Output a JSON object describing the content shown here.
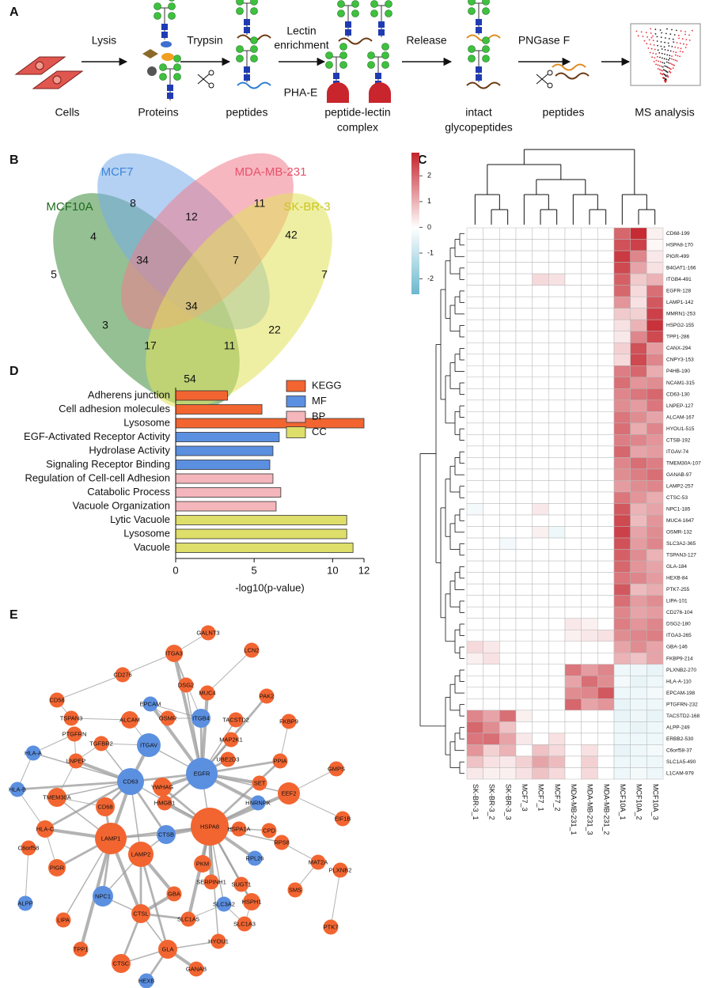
{
  "panels": [
    "A",
    "B",
    "C",
    "D",
    "E"
  ],
  "workflow": {
    "steps": [
      [
        "Cells"
      ],
      [
        "Proteins"
      ],
      [
        "peptides"
      ],
      [
        "peptide-lectin",
        "complex"
      ],
      [
        "intact",
        "glycopeptides"
      ],
      [
        "peptides"
      ],
      [
        "MS analysis"
      ]
    ],
    "arrows": [
      [
        "Lysis"
      ],
      [
        "Trypsin"
      ],
      [
        "Lectin",
        "enrichment"
      ],
      [
        "Release"
      ],
      [
        "PNGase F"
      ]
    ],
    "lectin": "PHA-E"
  },
  "venn": {
    "sets": [
      {
        "name": "MCF10A",
        "color": "#1e6b1e"
      },
      {
        "name": "MCF7",
        "color": "#3d85d8"
      },
      {
        "name": "MDA-MB-231",
        "color": "#e8506a"
      },
      {
        "name": "SK-BR-3",
        "color": "#c9c51f"
      }
    ],
    "counts": [
      8,
      11,
      12,
      4,
      42,
      34,
      7,
      5,
      7,
      34,
      3,
      22,
      17,
      11,
      54
    ]
  },
  "chart_data": {
    "type": "bar",
    "orientation": "horizontal",
    "xlabel": "-log10(p-value)",
    "xlim": [
      0,
      12
    ],
    "xticks": [
      0,
      5,
      10,
      12
    ],
    "series": [
      {
        "name": "KEGG",
        "color": "#f26531",
        "categories": [
          "Adherens junction",
          "Cell adhesion molecules",
          "Lysosome"
        ],
        "values": [
          3.3,
          5.5,
          12.0
        ]
      },
      {
        "name": "MF",
        "color": "#5b8fe0",
        "categories": [
          "EGF-Activated Receptor Activity",
          "Hydrolase Activity",
          "Signaling Receptor Binding"
        ],
        "values": [
          6.6,
          6.2,
          6.0
        ]
      },
      {
        "name": "BP",
        "color": "#f4b6bb",
        "categories": [
          "Regulation of Cell-cell Adhesion",
          "Catabolic Process",
          "Vacuole Organization"
        ],
        "values": [
          6.2,
          6.7,
          6.4
        ]
      },
      {
        "name": "CC",
        "color": "#dede6a",
        "categories": [
          "Lytic Vacuole",
          "Lysosome",
          "Vacuole"
        ],
        "values": [
          10.9,
          10.9,
          11.3
        ]
      }
    ]
  },
  "heatmap": {
    "vlim": [
      -2.6,
      2.9
    ],
    "colorbar_ticks": [
      2,
      1,
      0,
      -1,
      -2
    ],
    "columns": [
      "SK-BR-3_1",
      "SK-BR-3_2",
      "SK-BR-3_3",
      "MCF7_3",
      "MCF7_1",
      "MCF7_2",
      "MDA-MB-231_1",
      "MDA-MB-231_3",
      "MDA-MB-231_2",
      "MCF10A_1",
      "MCF10A_2",
      "MCF10A_3"
    ],
    "rows": [
      {
        "label": "CD68-199",
        "values": [
          0,
          0,
          0,
          0,
          0,
          0,
          0,
          0,
          0,
          2.0,
          2.8,
          0.2
        ]
      },
      {
        "label": "HSPA8-170",
        "values": [
          0,
          0,
          0,
          0,
          0,
          0,
          0,
          0,
          0,
          2.3,
          2.5,
          0.1
        ]
      },
      {
        "label": "PIGR-499",
        "values": [
          0,
          0,
          0,
          0,
          0,
          0,
          0,
          0,
          0,
          2.6,
          1.6,
          0.3
        ]
      },
      {
        "label": "B4GAT1-166",
        "values": [
          0,
          0,
          0,
          0,
          0,
          0,
          0,
          0,
          0,
          2.4,
          1.2,
          0.4
        ]
      },
      {
        "label": "ITGB4-491",
        "values": [
          0,
          0,
          0,
          0,
          0.5,
          0.4,
          0,
          0,
          0,
          2.1,
          0.7,
          1.0
        ]
      },
      {
        "label": "EGFR-128",
        "values": [
          0,
          0,
          0,
          0,
          0,
          0,
          0,
          0,
          0,
          2.0,
          0.5,
          1.9
        ]
      },
      {
        "label": "LAMP1-142",
        "values": [
          0,
          0,
          0,
          0,
          0,
          0,
          0,
          0,
          0,
          1.4,
          0.4,
          2.2
        ]
      },
      {
        "label": "MMRN1-253",
        "values": [
          0,
          0,
          0,
          0,
          0,
          0,
          0,
          0,
          0,
          0.7,
          0.6,
          2.5
        ]
      },
      {
        "label": "HSPG2-155",
        "values": [
          0,
          0,
          0,
          0,
          0,
          0,
          0,
          0,
          0,
          0.4,
          1.0,
          2.7
        ]
      },
      {
        "label": "TPP1-286",
        "values": [
          0,
          0,
          0,
          0,
          0,
          0,
          0,
          0,
          0,
          0.3,
          1.6,
          2.4
        ]
      },
      {
        "label": "CANX-294",
        "values": [
          0,
          0,
          0,
          0,
          0,
          0,
          0,
          0,
          0,
          0.6,
          2.3,
          1.3
        ]
      },
      {
        "label": "CNPY3-153",
        "values": [
          0,
          0,
          0,
          0,
          0,
          0,
          0,
          0,
          0,
          0.5,
          2.4,
          1.6
        ]
      },
      {
        "label": "P4HB-190",
        "values": [
          0,
          0,
          0,
          0,
          0,
          0,
          0,
          0,
          0,
          1.7,
          2.0,
          1.1
        ]
      },
      {
        "label": "NCAM1-315",
        "values": [
          0,
          0,
          0,
          0,
          0,
          0,
          0,
          0,
          0,
          1.9,
          1.4,
          1.5
        ]
      },
      {
        "label": "CD63-130",
        "values": [
          0,
          0,
          0,
          0,
          0,
          0,
          0,
          0,
          0,
          1.6,
          1.8,
          2.0
        ]
      },
      {
        "label": "LNPEP-127",
        "values": [
          0,
          0,
          0,
          0,
          0,
          0,
          0,
          0,
          0,
          1.5,
          1.3,
          1.8
        ]
      },
      {
        "label": "ALCAM-167",
        "values": [
          0,
          0,
          0,
          0,
          0,
          0,
          0,
          0,
          0,
          1.8,
          1.5,
          1.2
        ]
      },
      {
        "label": "HYOU1-515",
        "values": [
          0,
          0,
          0,
          0,
          0,
          0,
          0,
          0,
          0,
          1.9,
          1.1,
          1.6
        ]
      },
      {
        "label": "CTSB-192",
        "values": [
          0,
          0,
          0,
          0,
          0,
          0,
          0,
          0,
          0,
          1.7,
          1.6,
          1.4
        ]
      },
      {
        "label": "ITGAV-74",
        "values": [
          0,
          0,
          0,
          0,
          0,
          0,
          0,
          0,
          0,
          2.0,
          1.2,
          1.3
        ]
      },
      {
        "label": "TMEM30A-107",
        "values": [
          0,
          0,
          0,
          0,
          0,
          0,
          0,
          0,
          0,
          1.6,
          1.9,
          1.7
        ]
      },
      {
        "label": "GANAB-97",
        "values": [
          0,
          0,
          0,
          0,
          0,
          0,
          0,
          0,
          0,
          1.5,
          1.7,
          1.9
        ]
      },
      {
        "label": "LAMP2-257",
        "values": [
          0,
          0,
          0,
          0,
          0,
          0,
          0,
          0,
          0,
          1.3,
          1.5,
          1.6
        ]
      },
      {
        "label": "CTSC-53",
        "values": [
          0,
          0,
          0,
          0,
          0,
          0,
          0,
          0,
          0,
          1.8,
          1.4,
          1.1
        ]
      },
      {
        "label": "NPC1-185",
        "values": [
          -0.2,
          0,
          0,
          0,
          0.3,
          0,
          0,
          0,
          0,
          2.2,
          1.0,
          1.2
        ]
      },
      {
        "label": "MUC4-1647",
        "values": [
          0,
          0,
          0,
          0,
          0,
          0,
          0,
          0,
          0,
          2.4,
          0.9,
          1.4
        ]
      },
      {
        "label": "OSMR-132",
        "values": [
          0,
          0,
          0,
          0,
          0.2,
          -0.3,
          0,
          0,
          0,
          2.5,
          1.2,
          1.5
        ]
      },
      {
        "label": "SLC3A2-365",
        "values": [
          0,
          0,
          -0.2,
          0,
          0,
          0,
          0,
          0,
          0,
          2.3,
          1.3,
          1.6
        ]
      },
      {
        "label": "TSPAN3-127",
        "values": [
          0,
          0,
          0,
          0,
          0,
          0,
          0,
          0,
          0,
          2.1,
          1.5,
          1.0
        ]
      },
      {
        "label": "GLA-184",
        "values": [
          0,
          0,
          0,
          0,
          0,
          0,
          0,
          0,
          0,
          2.0,
          1.4,
          1.2
        ]
      },
      {
        "label": "HEXB-84",
        "values": [
          0,
          0,
          0,
          0,
          0,
          0,
          0,
          0,
          0,
          1.8,
          1.6,
          1.3
        ]
      },
      {
        "label": "PTK7-255",
        "values": [
          0,
          0,
          0,
          0,
          0,
          0,
          0,
          0,
          0,
          2.2,
          0.9,
          1.1
        ]
      },
      {
        "label": "LIPA-101",
        "values": [
          0,
          0,
          0,
          0,
          0,
          0,
          0,
          0,
          0,
          1.9,
          1.3,
          1.5
        ]
      },
      {
        "label": "CD276-104",
        "values": [
          0,
          0,
          0,
          0,
          0,
          0,
          0,
          0,
          0,
          1.6,
          1.2,
          1.3
        ]
      },
      {
        "label": "DSG2-180",
        "values": [
          0,
          0,
          0,
          0,
          0,
          0,
          0.3,
          0.2,
          0,
          1.7,
          1.4,
          1.6
        ]
      },
      {
        "label": "ITGA3-265",
        "values": [
          0,
          0,
          0,
          0,
          0,
          0,
          0.2,
          0.3,
          0.4,
          1.5,
          1.6,
          1.7
        ]
      },
      {
        "label": "GBA-146",
        "values": [
          0.5,
          0.3,
          0,
          0,
          0,
          0,
          0,
          0,
          0,
          1.2,
          1.5,
          1.2
        ]
      },
      {
        "label": "FKBP9-214",
        "values": [
          0.2,
          0.4,
          0,
          0,
          0,
          0,
          0,
          0,
          0,
          1.0,
          0.8,
          1.2
        ]
      },
      {
        "label": "PLXNB2-270",
        "values": [
          0,
          0,
          0,
          0,
          0,
          0,
          1.8,
          1.3,
          1.6,
          -0.3,
          -0.3,
          -0.4
        ]
      },
      {
        "label": "HLA-A-110",
        "values": [
          0,
          0,
          0,
          0,
          0,
          0,
          1.2,
          1.9,
          1.5,
          -0.2,
          -0.4,
          -0.3
        ]
      },
      {
        "label": "EPCAM-198",
        "values": [
          0,
          0,
          0,
          0,
          0,
          0,
          1.5,
          1.6,
          2.2,
          -0.3,
          -0.3,
          -0.2
        ]
      },
      {
        "label": "PTGFRN-232",
        "values": [
          0,
          0,
          0,
          0,
          0,
          0,
          2.0,
          1.2,
          1.4,
          -0.4,
          -0.3,
          -0.3
        ]
      },
      {
        "label": "TACSTD2-168",
        "values": [
          1.6,
          1.2,
          1.9,
          0.2,
          0,
          0,
          0,
          0,
          0,
          -0.4,
          -0.3,
          -0.4
        ]
      },
      {
        "label": "ALPP-249",
        "values": [
          2.0,
          1.5,
          0.8,
          0,
          0,
          0,
          0,
          0,
          0,
          -0.3,
          -0.4,
          -0.3
        ]
      },
      {
        "label": "ERBB2-530",
        "values": [
          1.8,
          1.9,
          1.2,
          0.3,
          0,
          0.4,
          0,
          0,
          0,
          -0.3,
          -0.3,
          -0.3
        ]
      },
      {
        "label": "C6orf58-37",
        "values": [
          1.4,
          0.6,
          1.0,
          0,
          0.8,
          0.5,
          0,
          0.4,
          0,
          -0.4,
          -0.3,
          -0.2
        ]
      },
      {
        "label": "SLC1A5-490",
        "values": [
          0.8,
          0.4,
          0.3,
          0.6,
          1.2,
          0.9,
          0,
          0.6,
          0,
          -0.3,
          -0.3,
          -0.3
        ]
      },
      {
        "label": "L1CAM-979",
        "values": [
          0.3,
          0.2,
          0.2,
          0.4,
          0.8,
          0.5,
          0,
          0.5,
          0,
          -0.3,
          -0.2,
          -0.3
        ]
      }
    ]
  },
  "network": {
    "nodes": [
      {
        "label": "GALNT3",
        "color": "#f26531"
      },
      {
        "label": "LCN2",
        "color": "#f26531"
      },
      {
        "label": "ITGA3",
        "color": "#f26531"
      },
      {
        "label": "CD276",
        "color": "#f26531"
      },
      {
        "label": "MUC4",
        "color": "#f26531"
      },
      {
        "label": "DSG2",
        "color": "#f26531"
      },
      {
        "label": "PAK2",
        "color": "#f26531"
      },
      {
        "label": "CD58",
        "color": "#f26531"
      },
      {
        "label": "TSPAN3",
        "color": "#f26531"
      },
      {
        "label": "EPCAM",
        "color": "#5b8fe0"
      },
      {
        "label": "OSMR",
        "color": "#f26531"
      },
      {
        "label": "ITGB4",
        "color": "#5b8fe0"
      },
      {
        "label": "TACSTD2",
        "color": "#f26531"
      },
      {
        "label": "FKBP9",
        "color": "#f26531"
      },
      {
        "label": "ALCAM",
        "color": "#f26531"
      },
      {
        "label": "PTGFRN",
        "color": "#f26531"
      },
      {
        "label": "ITGAV",
        "color": "#5b8fe0"
      },
      {
        "label": "TGFBR2",
        "color": "#f26531"
      },
      {
        "label": "MAP2K1",
        "color": "#f26531"
      },
      {
        "label": "HLA-A",
        "color": "#5b8fe0"
      },
      {
        "label": "LNPEP",
        "color": "#f26531"
      },
      {
        "label": "EGFR",
        "color": "#5b8fe0"
      },
      {
        "label": "PPIA",
        "color": "#f26531"
      },
      {
        "label": "UBE2D3",
        "color": "#f26531"
      },
      {
        "label": "GMPS",
        "color": "#f26531"
      },
      {
        "label": "CD63",
        "color": "#5b8fe0"
      },
      {
        "label": "YWHAG",
        "color": "#f26531"
      },
      {
        "label": "SET",
        "color": "#f26531"
      },
      {
        "label": "HLA-B",
        "color": "#5b8fe0"
      },
      {
        "label": "TMEM30A",
        "color": "#f26531"
      },
      {
        "label": "HNRNPK",
        "color": "#5b8fe0"
      },
      {
        "label": "EEF2",
        "color": "#f26531"
      },
      {
        "label": "HMGB1",
        "color": "#f26531"
      },
      {
        "label": "CD68",
        "color": "#f26531"
      },
      {
        "label": "HSPA8",
        "color": "#f26531"
      },
      {
        "label": "EIF1B",
        "color": "#f26531"
      },
      {
        "label": "HLA-C",
        "color": "#f26531"
      },
      {
        "label": "HSPA1A",
        "color": "#f26531"
      },
      {
        "label": "CPD",
        "color": "#f26531"
      },
      {
        "label": "CTSB",
        "color": "#5b8fe0"
      },
      {
        "label": "LAMP1",
        "color": "#f26531"
      },
      {
        "label": "RPS8",
        "color": "#f26531"
      },
      {
        "label": "C6orf58",
        "color": "#f26531"
      },
      {
        "label": "MAT2A",
        "color": "#f26531"
      },
      {
        "label": "RPL26",
        "color": "#5b8fe0"
      },
      {
        "label": "LAMP2",
        "color": "#f26531"
      },
      {
        "label": "PKM",
        "color": "#f26531"
      },
      {
        "label": "PLXNB2",
        "color": "#f26531"
      },
      {
        "label": "PIGR",
        "color": "#f26531"
      },
      {
        "label": "SERPINH1",
        "color": "#f26531"
      },
      {
        "label": "SUGT1",
        "color": "#f26531"
      },
      {
        "label": "HSPH1",
        "color": "#f26531"
      },
      {
        "label": "SMS",
        "color": "#f26531"
      },
      {
        "label": "NPC1",
        "color": "#5b8fe0"
      },
      {
        "label": "GBA",
        "color": "#f26531"
      },
      {
        "label": "CTSL",
        "color": "#f26531"
      },
      {
        "label": "SLC3A2",
        "color": "#5b8fe0"
      },
      {
        "label": "SLC1A5",
        "color": "#f26531"
      },
      {
        "label": "ALPP",
        "color": "#5b8fe0"
      },
      {
        "label": "LIPA",
        "color": "#f26531"
      },
      {
        "label": "SLC1A3",
        "color": "#f26531"
      },
      {
        "label": "HYOU1",
        "color": "#f26531"
      },
      {
        "label": "TPP1",
        "color": "#f26531"
      },
      {
        "label": "GLA",
        "color": "#f26531"
      },
      {
        "label": "PTK7",
        "color": "#f26531"
      },
      {
        "label": "CTSC",
        "color": "#f26531"
      },
      {
        "label": "GANAB",
        "color": "#f26531"
      },
      {
        "label": "HEXB",
        "color": "#5b8fe0"
      }
    ]
  }
}
